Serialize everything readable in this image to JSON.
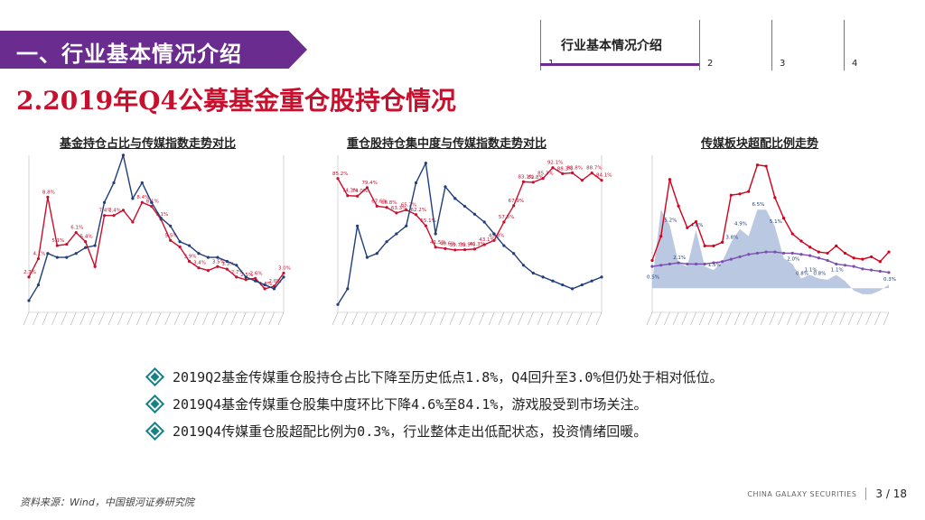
{
  "section_banner": "一、行业基本情况介绍",
  "nav": {
    "active_title": "行业基本情况介绍",
    "items": [
      "1",
      "2",
      "3",
      "4"
    ]
  },
  "page_title": "2.2019年Q4公募基金重仓股持仓情况",
  "charts": {
    "c1_title": "基金持仓占比与传媒指数走势对比",
    "c2_title": "重仓股持仓集中度与传媒指数走势对比",
    "c3_title": "传媒板块超配比例走势"
  },
  "chart_data": [
    {
      "type": "line",
      "title": "基金持仓占比与传媒指数走势对比",
      "ylim": [
        0,
        12
      ],
      "y2lim": [
        0,
        4000
      ],
      "series": [
        {
          "axis": "left",
          "color": "#c8102e",
          "values": [
            2.7,
            4.1,
            8.8,
            5.1,
            5.2,
            6.1,
            5.4,
            3.5,
            7.4,
            7.4,
            7.8,
            6.9,
            8.4,
            8.1,
            7.1,
            5.5,
            5.0,
            3.9,
            3.4,
            3.2,
            3.5,
            3.3,
            2.7,
            2.5,
            2.6,
            1.8,
            2.0,
            3.0
          ],
          "labels": [
            "2.7%",
            "4.1%",
            "8.8%",
            "5.1%",
            "",
            "6.1%",
            "5.4%",
            "",
            "7.4%",
            "7.4%",
            "",
            "",
            "8.4%",
            "8.1%",
            "7.1%",
            "5.5%",
            "",
            "3.9%",
            "3.4%",
            "",
            "3.5%",
            "3.3%",
            "2.7%",
            "2.5%",
            "2.6%",
            "1.8%",
            "2.0%",
            "3.0%"
          ]
        },
        {
          "axis": "right",
          "color": "#1f3e7a",
          "values": [
            300,
            700,
            1500,
            1400,
            1400,
            1500,
            1650,
            1700,
            2800,
            3300,
            4000,
            2900,
            3300,
            2800,
            2400,
            2200,
            1800,
            1700,
            1500,
            1400,
            1400,
            1300,
            1200,
            900,
            800,
            700,
            600,
            900
          ],
          "labels": []
        }
      ]
    },
    {
      "type": "line",
      "title": "重仓股持仓集中度与传媒指数走势对比",
      "ylim": [
        0,
        100
      ],
      "y2lim": [
        0,
        400
      ],
      "series": [
        {
          "axis": "left",
          "color": "#c8102e",
          "values": [
            85.2,
            74.3,
            74.0,
            79.4,
            67.6,
            66.8,
            63.3,
            65.2,
            62.2,
            55.1,
            41.5,
            40.6,
            39.7,
            39.9,
            40.3,
            43.1,
            45.8,
            57.5,
            67.9,
            83.1,
            82.8,
            85.3,
            92.1,
            88.3,
            88.8,
            84.1,
            88.7,
            84.1
          ],
          "labels": [
            "85.2%",
            "74.3%",
            "74.0%",
            "79.4%",
            "67.6%",
            "66.8%",
            "63.3%",
            "65.2%",
            "62.2%",
            "55.1%",
            "41.5%",
            "40.6%",
            "39.7%",
            "39.9%",
            "40.3%",
            "43.1%",
            "45.8%",
            "57.5%",
            "67.9%",
            "83.1%",
            "82.8%",
            "85.3%",
            "92.1%",
            "88.3%",
            "88.8%",
            "",
            "88.7%",
            "84.1%"
          ]
        },
        {
          "axis": "right",
          "color": "#1f3e7a",
          "values": [
            20,
            60,
            220,
            140,
            150,
            180,
            200,
            220,
            330,
            380,
            200,
            320,
            290,
            270,
            250,
            230,
            200,
            170,
            150,
            120,
            100,
            90,
            80,
            70,
            60,
            70,
            80,
            90
          ],
          "labels": []
        }
      ]
    },
    {
      "type": "line",
      "title": "传媒板块超配比例走势",
      "ylim": [
        -2,
        11
      ],
      "series": [
        {
          "name": "",
          "type": "area",
          "color": "#aebfdc",
          "values": [
            0.5,
            6.5,
            5.2,
            2.1,
            1.8,
            4.8,
            1.8,
            1.5,
            2.2,
            3.8,
            4.9,
            4.3,
            6.5,
            6.5,
            5.1,
            2.5,
            2.0,
            0.8,
            1.1,
            0.8,
            0.7,
            1.1,
            0.6,
            -0.2,
            -0.5,
            -0.5,
            -0.2,
            0.3
          ],
          "labels": [
            "0.5%",
            "",
            "5.2%",
            "2.1%",
            "",
            "4.8%",
            "",
            "1.5%",
            "",
            "3.8%",
            "4.9%",
            "",
            "6.5%",
            "",
            "5.1%",
            "",
            "2.0%",
            "0.8%",
            "1.1%",
            "0.8%",
            "",
            "1.1%",
            "",
            "",
            "",
            "",
            "",
            "0.3%"
          ]
        },
        {
          "name": "",
          "color": "#7a4fb0",
          "values": [
            1.8,
            1.9,
            2.0,
            2.1,
            2.0,
            2.0,
            2.0,
            2.1,
            2.2,
            2.4,
            2.6,
            2.8,
            2.9,
            3.0,
            3.0,
            2.9,
            2.9,
            2.8,
            2.7,
            2.5,
            2.3,
            2.0,
            1.9,
            1.8,
            1.6,
            1.5,
            1.4,
            1.3
          ],
          "labels": []
        },
        {
          "name": "",
          "color": "#d0021b",
          "values": [
            2.3,
            4.3,
            9.0,
            6.8,
            5.0,
            5.5,
            3.5,
            3.5,
            3.8,
            7.7,
            7.8,
            8.0,
            10.2,
            10.1,
            7.5,
            5.8,
            4.5,
            3.9,
            3.4,
            3.0,
            2.9,
            3.5,
            2.9,
            2.5,
            2.4,
            2.6,
            2.2,
            3.0
          ],
          "labels": []
        }
      ]
    }
  ],
  "bullets": [
    "2019Q2基金传媒重仓股持仓占比下降至历史低点1.8%，Q4回升至3.0%但仍处于相对低位。",
    "2019Q4基金传媒重仓股集中度环比下降4.6%至84.1%，游戏股受到市场关注。",
    "2019Q4传媒重仓股超配比例为0.3%，行业整体走出低配状态，投资情绪回暖。"
  ],
  "source": "资料来源：Wind，中国银河证券研究院",
  "footer": {
    "brand": "CHINA GALAXY SECURITIES",
    "page": "3 / 18"
  },
  "colors": {
    "accent_purple": "#6a2c8e",
    "title_red": "#c8102e",
    "bullet_teal": "#1c7f86"
  }
}
